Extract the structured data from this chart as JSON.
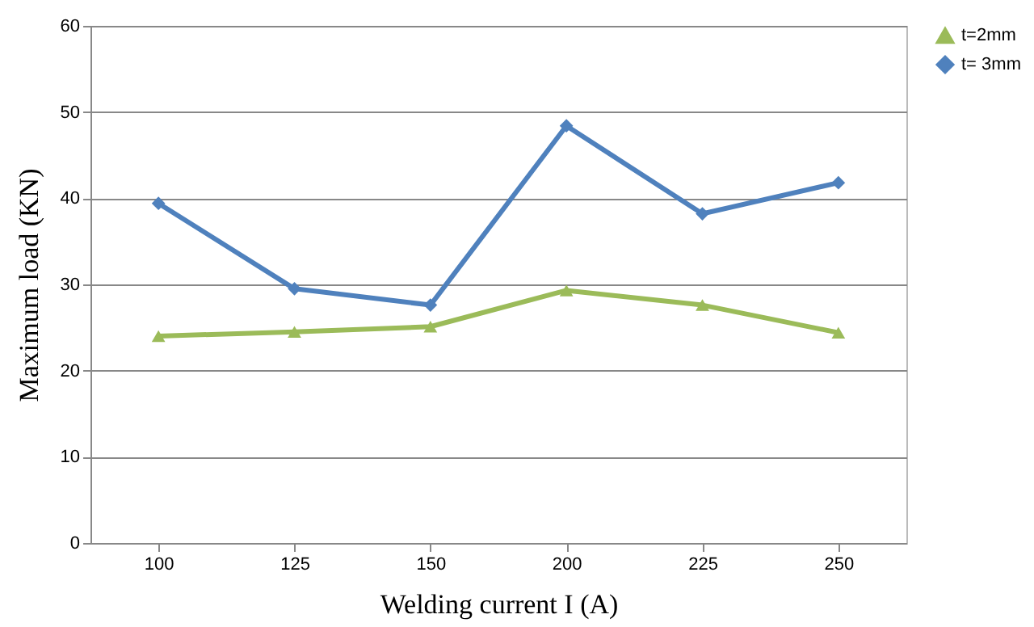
{
  "chart_data": {
    "type": "line",
    "xlabel": "Welding current I (A)",
    "ylabel": "Maximum load (KN)",
    "categories": [
      "100",
      "125",
      "150",
      "200",
      "225",
      "250"
    ],
    "series": [
      {
        "name": "t=2mm",
        "color": "#9bbb59",
        "marker": "triangle",
        "values": [
          24.0,
          24.5,
          25.1,
          29.3,
          27.6,
          24.4
        ]
      },
      {
        "name": "t= 3mm",
        "color": "#4f81bd",
        "marker": "diamond",
        "values": [
          39.4,
          29.5,
          27.6,
          48.4,
          38.2,
          41.8
        ]
      }
    ],
    "ylim": [
      0,
      60
    ],
    "yticks": [
      0,
      10,
      20,
      30,
      40,
      50,
      60
    ],
    "grid": "y",
    "legend": "right"
  }
}
